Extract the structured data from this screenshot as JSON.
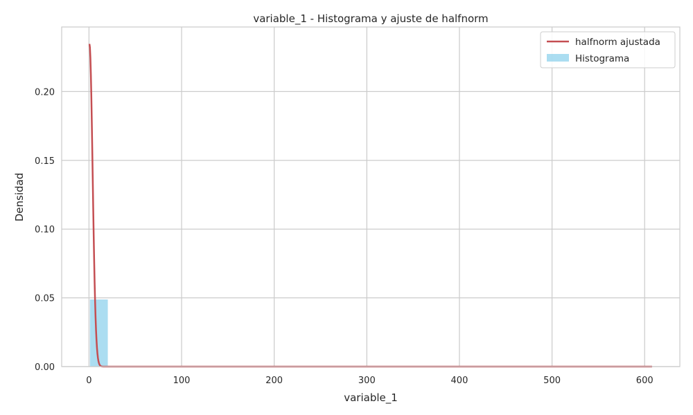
{
  "chart_data": {
    "type": "histogram",
    "title": "variable_1 - Histograma y ajuste de halfnorm",
    "xlabel": "variable_1",
    "ylabel": "Densidad",
    "xlim": [
      -29.5,
      638
    ],
    "ylim": [
      0,
      0.247
    ],
    "xticks": [
      0,
      100,
      200,
      300,
      400,
      500,
      600
    ],
    "xtick_labels": [
      "0",
      "100",
      "200",
      "300",
      "400",
      "500",
      "600"
    ],
    "yticks": [
      0.0,
      0.05,
      0.1,
      0.15,
      0.2
    ],
    "ytick_labels": [
      "0.00",
      "0.05",
      "0.10",
      "0.15",
      "0.20"
    ],
    "grid": true,
    "legend_position": "top-right",
    "histogram": {
      "name": "Histograma",
      "color": "#87CEEB",
      "bin_edges": [
        1,
        20.3,
        39.6,
        58.9,
        78.2,
        97.5,
        116.8,
        136.1,
        155.4,
        174.7,
        194,
        213.3,
        232.6,
        251.9,
        271.2,
        290.5,
        309.8,
        329.1,
        348.4,
        367.7,
        387,
        406.3,
        425.6,
        444.9,
        464.2,
        483.5,
        502.8,
        522.1,
        541.4,
        560.7,
        580,
        599.3,
        608.6
      ],
      "densities": [
        0.0488,
        0.0004,
        0.0002,
        0.0001,
        0.0001,
        0.0001,
        0.0001,
        0.0001,
        0.0001,
        0.0001,
        0.0001,
        0.0001,
        0.0001,
        0.0001,
        0.0001,
        0.0001,
        0.0001,
        0.0001,
        0.0001,
        0.0001,
        0.0001,
        0.0001,
        0.0001,
        0.0001,
        0.0001,
        0.0001,
        0.0001,
        0.0001,
        0.0001,
        0.0001,
        0.0001,
        0.0001
      ]
    },
    "fit": {
      "name": "halfnorm ajustada",
      "color": "#C44E52",
      "distribution": "halfnorm",
      "loc": 0.5,
      "scale": 3.4,
      "x_range": [
        0.5,
        608
      ]
    }
  }
}
